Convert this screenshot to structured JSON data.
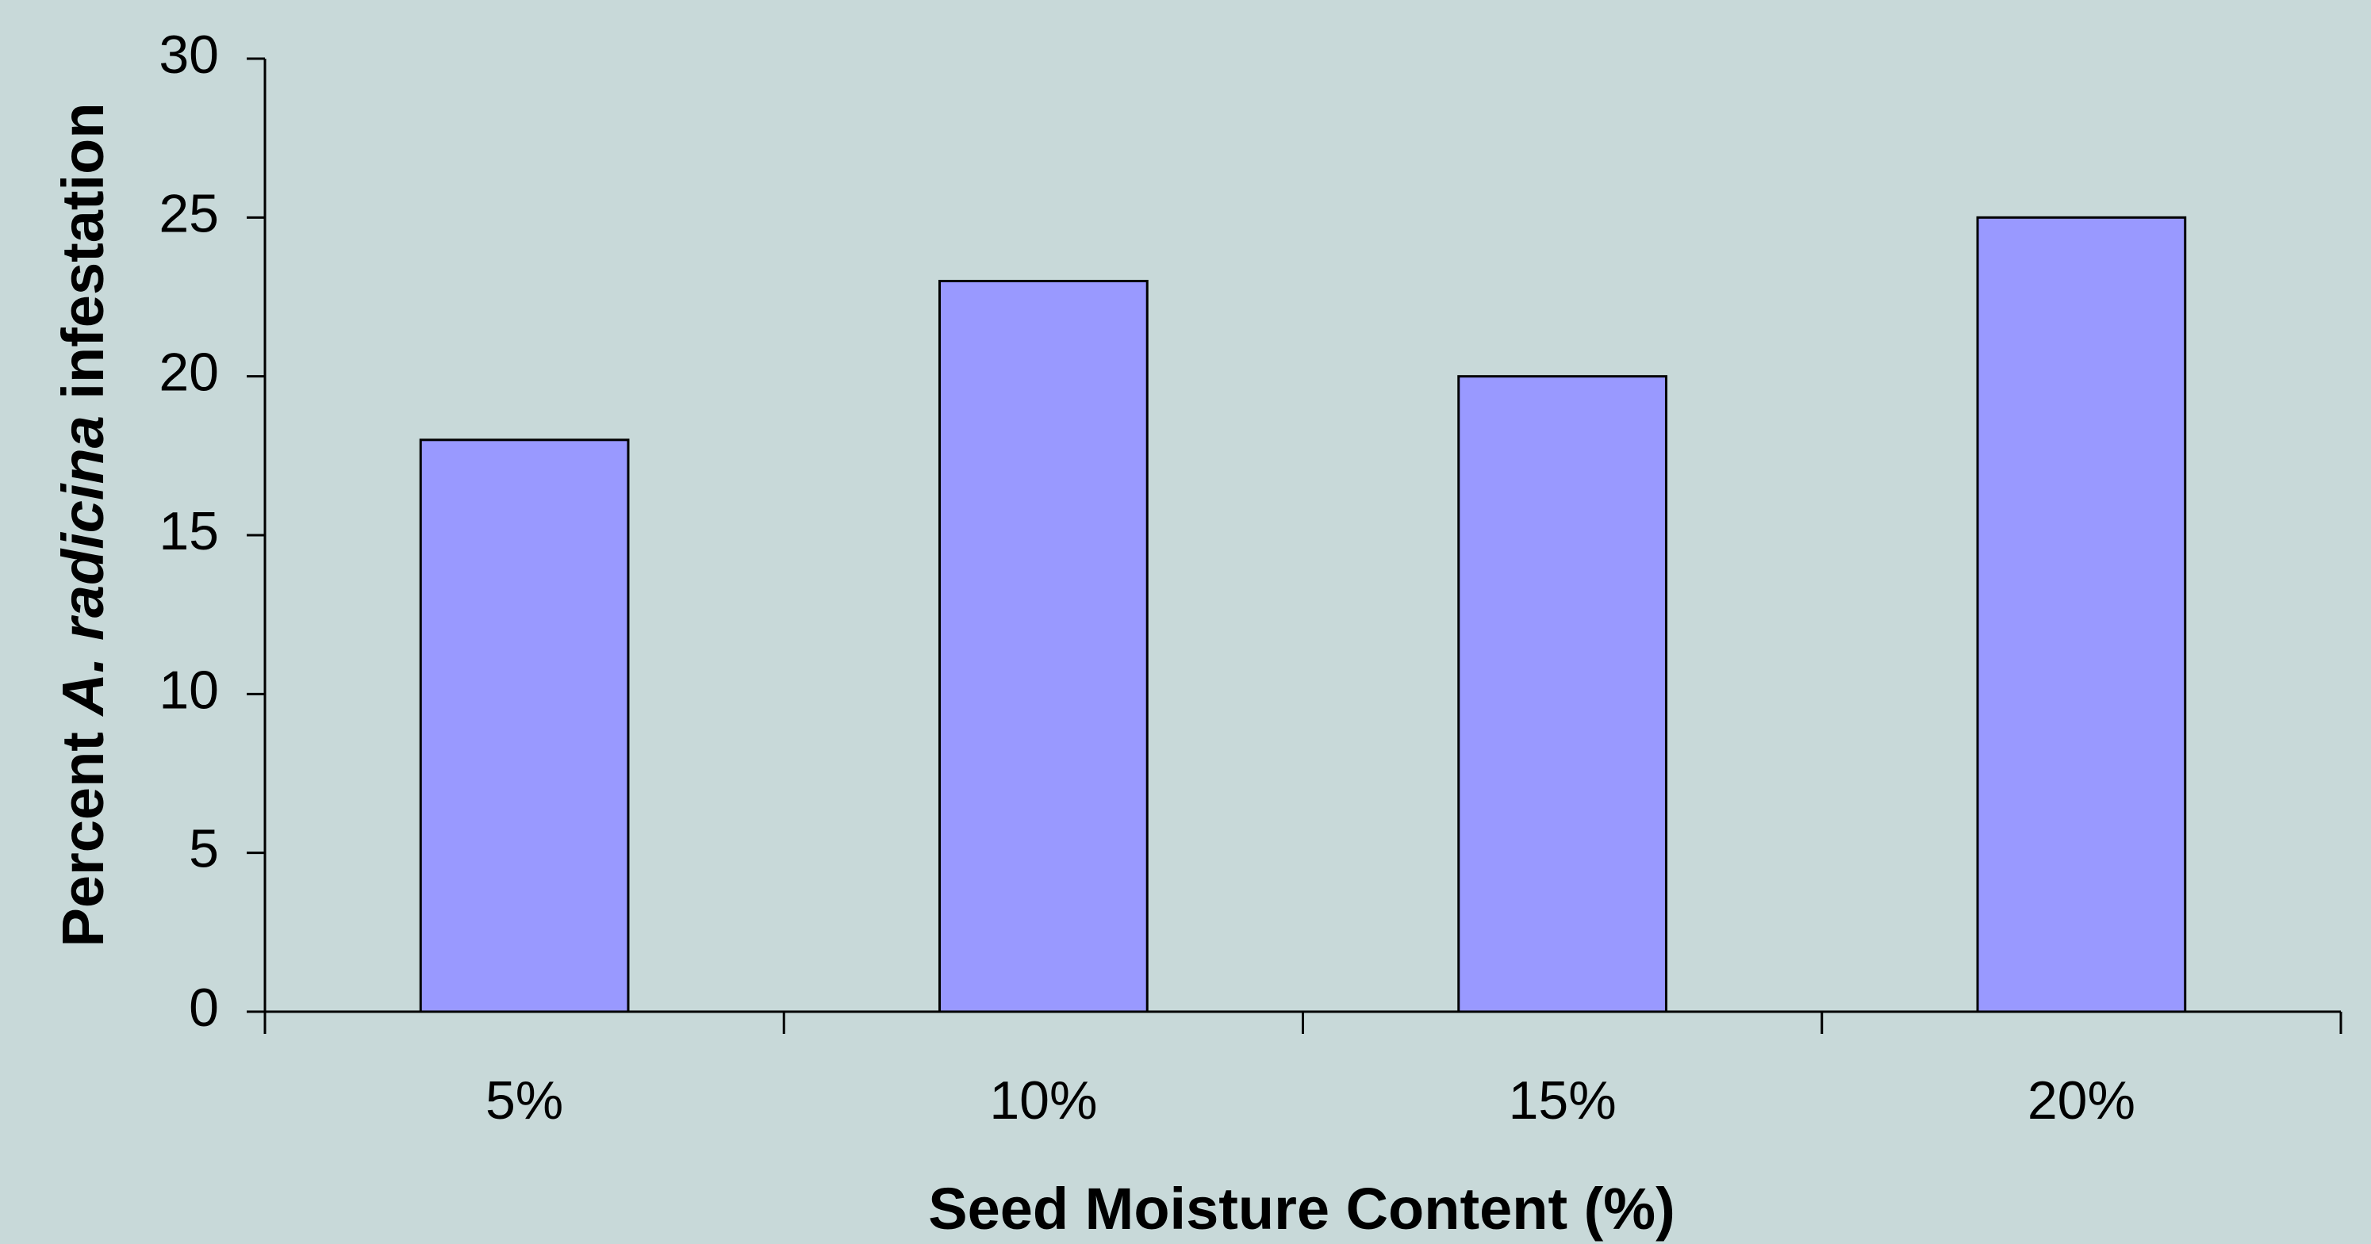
{
  "chart_data": {
    "type": "bar",
    "xlabel": "Seed Moisture Content (%)",
    "ylabel": [
      "Percent",
      "A. radicina",
      "infestation"
    ],
    "categories": [
      "5%",
      "10%",
      "15%",
      "20%"
    ],
    "values": [
      18,
      23,
      20,
      25
    ],
    "color": "#9999ff",
    "ylim": [
      0,
      30
    ],
    "yticks": [
      0,
      5,
      10,
      15,
      20,
      25,
      30
    ],
    "grid": false
  }
}
